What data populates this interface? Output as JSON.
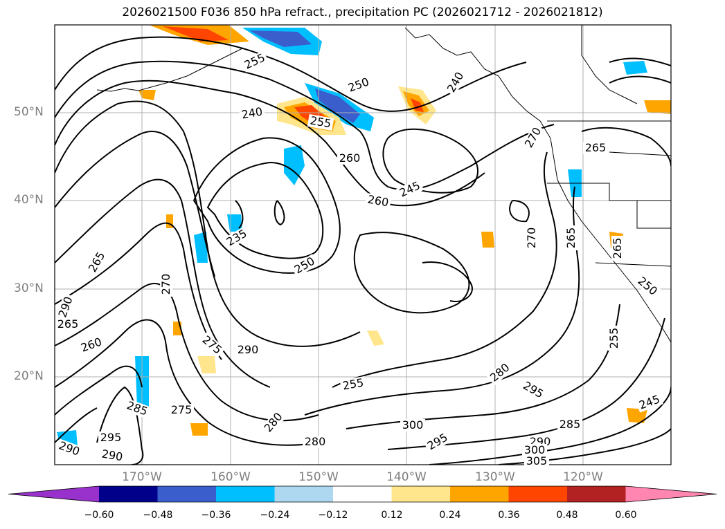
{
  "title": "2026021500 F036 850 hPa refract., precipitation PC (2026021712 - 2026021812)",
  "lat_labels": [
    "50°N",
    "40°N",
    "30°N",
    "20°N"
  ],
  "lon_labels": [
    "170°W",
    "160°W",
    "150°W",
    "140°W",
    "130°W",
    "120°W"
  ],
  "contour_labels": [
    "250",
    "255",
    "240",
    "255",
    "260",
    "245",
    "260",
    "265",
    "270",
    "265",
    "235",
    "250",
    "265",
    "270",
    "290",
    "265",
    "260",
    "255",
    "290",
    "280",
    "275",
    "280",
    "285",
    "275",
    "295",
    "295",
    "280",
    "285",
    "290",
    "300",
    "295",
    "290",
    "290",
    "300",
    "305",
    "245",
    "250",
    "265",
    "255",
    "270",
    "240"
  ],
  "colorbar": {
    "ticks": [
      "−0.60",
      "−0.48",
      "−0.36",
      "−0.24",
      "−0.12",
      "0.12",
      "0.24",
      "0.36",
      "0.48",
      "0.60"
    ],
    "colors": [
      "#9932cc",
      "#00008b",
      "#3a5fcd",
      "#00bfff",
      "#add8f0",
      "#ffffff",
      "#ffe68c",
      "#ffa500",
      "#ff4500",
      "#b22222",
      "#ff86b0"
    ]
  }
}
